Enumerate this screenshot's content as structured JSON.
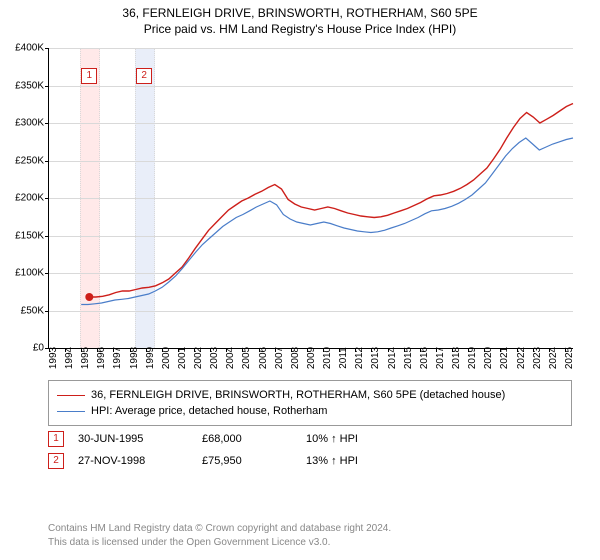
{
  "title_line1": "36, FERNLEIGH DRIVE, BRINSWORTH, ROTHERHAM, S60 5PE",
  "title_line2": "Price paid vs. HM Land Registry's House Price Index (HPI)",
  "chart": {
    "type": "line",
    "background_color": "#ffffff",
    "grid_color": "#d9d9d9",
    "axis_color": "#000000",
    "label_fontsize": 10,
    "x_years": [
      1993,
      1994,
      1995,
      1996,
      1997,
      1998,
      1999,
      2000,
      2001,
      2002,
      2003,
      2004,
      2005,
      2006,
      2007,
      2008,
      2009,
      2010,
      2011,
      2012,
      2013,
      2014,
      2015,
      2016,
      2017,
      2018,
      2019,
      2020,
      2021,
      2022,
      2023,
      2024,
      2025
    ],
    "xlim": [
      1993,
      2025.5
    ],
    "ylim": [
      0,
      400000
    ],
    "ytick_step": 50000,
    "ytick_labels": [
      "£0",
      "£50K",
      "£100K",
      "£150K",
      "£200K",
      "£250K",
      "£300K",
      "£350K",
      "£400K"
    ],
    "series": [
      {
        "name": "36, FERNLEIGH DRIVE, BRINSWORTH, ROTHERHAM, S60 5PE (detached house)",
        "color": "#cd1f1a",
        "line_width": 1.4,
        "start_year": 1995.5,
        "anchor_marker": {
          "x": 1995.5,
          "y": 68000,
          "size": 4
        },
        "data": [
          68000,
          68000,
          69000,
          71000,
          74000,
          76000,
          76000,
          78000,
          80000,
          81000,
          83000,
          87000,
          92000,
          100000,
          108000,
          120000,
          133000,
          145000,
          157000,
          166000,
          175000,
          184000,
          190000,
          196000,
          200000,
          205000,
          209000,
          214000,
          218000,
          212000,
          198000,
          192000,
          188000,
          186000,
          184000,
          186000,
          188000,
          186000,
          183000,
          180000,
          178000,
          176000,
          175000,
          174000,
          175000,
          177000,
          180000,
          183000,
          186000,
          190000,
          194000,
          199000,
          203000,
          204000,
          206000,
          209000,
          213000,
          218000,
          224000,
          232000,
          240000,
          252000,
          265000,
          280000,
          294000,
          306000,
          314000,
          308000,
          300000,
          305000,
          310000,
          316000,
          322000,
          326000
        ]
      },
      {
        "name": "HPI: Average price, detached house, Rotherham",
        "color": "#4a7dc9",
        "line_width": 1.2,
        "start_year": 1995.0,
        "data": [
          58000,
          58000,
          59000,
          60000,
          62000,
          64000,
          65000,
          66000,
          68000,
          70000,
          72000,
          76000,
          81000,
          88000,
          96000,
          106000,
          117000,
          128000,
          138000,
          146000,
          154000,
          162000,
          168000,
          174000,
          178000,
          183000,
          188000,
          192000,
          196000,
          191000,
          178000,
          172000,
          168000,
          166000,
          164000,
          166000,
          168000,
          166000,
          163000,
          160000,
          158000,
          156000,
          155000,
          154000,
          155000,
          157000,
          160000,
          163000,
          166000,
          170000,
          174000,
          179000,
          183000,
          184000,
          186000,
          189000,
          193000,
          198000,
          204000,
          212000,
          220000,
          232000,
          244000,
          256000,
          266000,
          274000,
          280000,
          272000,
          264000,
          268000,
          272000,
          275000,
          278000,
          280000
        ]
      }
    ],
    "markers": [
      {
        "num": "1",
        "year": 1995.5,
        "band_color": "#ffe9e9"
      },
      {
        "num": "2",
        "year": 1998.9,
        "band_color": "#e9eef9"
      }
    ]
  },
  "legend": [
    {
      "color": "#cd1f1a",
      "label": "36, FERNLEIGH DRIVE, BRINSWORTH, ROTHERHAM, S60 5PE (detached house)"
    },
    {
      "color": "#4a7dc9",
      "label": "HPI: Average price, detached house, Rotherham"
    }
  ],
  "transactions": [
    {
      "num": "1",
      "date": "30-JUN-1995",
      "price": "£68,000",
      "pct": "10% ↑ HPI"
    },
    {
      "num": "2",
      "date": "27-NOV-1998",
      "price": "£75,950",
      "pct": "13% ↑ HPI"
    }
  ],
  "license_line1": "Contains HM Land Registry data © Crown copyright and database right 2024.",
  "license_line2": "This data is licensed under the Open Government Licence v3.0."
}
